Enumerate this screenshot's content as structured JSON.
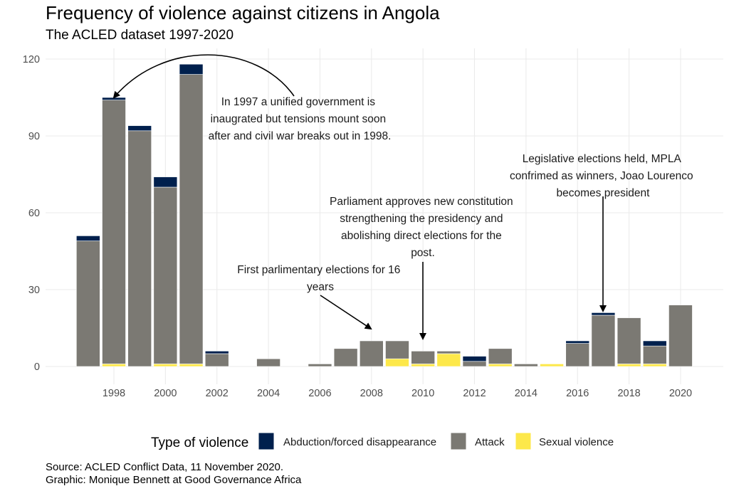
{
  "chart_data": {
    "type": "bar",
    "stacked": true,
    "title": "Frequency of violence against citizens in Angola",
    "subtitle": "The ACLED dataset 1997-2020",
    "xlabel": "",
    "ylabel": "",
    "ylim": [
      0,
      120
    ],
    "yticks": [
      0,
      30,
      60,
      90,
      120
    ],
    "xticks": [
      1998,
      2000,
      2002,
      2004,
      2006,
      2008,
      2010,
      2012,
      2014,
      2016,
      2018,
      2020
    ],
    "grid": true,
    "categories": [
      1997,
      1998,
      1999,
      2000,
      2001,
      2002,
      2003,
      2004,
      2005,
      2006,
      2007,
      2008,
      2009,
      2010,
      2011,
      2012,
      2013,
      2014,
      2015,
      2016,
      2017,
      2018,
      2019,
      2020
    ],
    "series": [
      {
        "name": "Sexual violence",
        "color": "#fde84a",
        "values": [
          0,
          1,
          0,
          1,
          1,
          0,
          0,
          0,
          0,
          0,
          0,
          0,
          3,
          1,
          5,
          0,
          1,
          0,
          1,
          0,
          0,
          1,
          1,
          0
        ]
      },
      {
        "name": "Attack",
        "color": "#7b7973",
        "values": [
          49,
          103,
          92,
          69,
          113,
          5,
          0,
          3,
          0,
          1,
          7,
          10,
          7,
          5,
          1,
          2,
          6,
          1,
          0,
          9,
          20,
          18,
          7,
          24
        ]
      },
      {
        "name": "Abduction/forced disappearance",
        "color": "#00204d",
        "values": [
          2,
          1,
          2,
          4,
          4,
          1,
          0,
          0,
          0,
          0,
          0,
          0,
          0,
          0,
          0,
          2,
          0,
          0,
          0,
          1,
          1,
          0,
          2,
          0
        ]
      }
    ],
    "legend": {
      "title": "Type of violence",
      "position": "bottom",
      "entries": [
        {
          "label": "Abduction/forced disappearance",
          "color": "#00204d"
        },
        {
          "label": "Attack",
          "color": "#7b7973"
        },
        {
          "label": "Sexual violence",
          "color": "#fde84a"
        }
      ]
    },
    "annotations": [
      {
        "lines": [
          "In 1997 a unified government is",
          "inaugrated but tensions mount soon",
          "after and civil war breaks out in 1998."
        ],
        "target_year": 1998,
        "target_value": 105
      },
      {
        "lines": [
          "First parlimentary elections for 16",
          "years"
        ],
        "target_year": 2008,
        "target_value": 10
      },
      {
        "lines": [
          "Parliament approves new constitution",
          "strengthening the presidency and",
          "abolishing direct elections for the",
          "post."
        ],
        "target_year": 2010,
        "target_value": 6
      },
      {
        "lines": [
          "Legislative elections held, MPLA",
          "confrimed as winners, Joao Lourenco",
          "becomes president"
        ],
        "target_year": 2017,
        "target_value": 21
      }
    ],
    "caption": [
      "Source: ACLED Conflict Data, 11 November 2020.",
      "Graphic: Monique Bennett at Good Governance Africa"
    ]
  }
}
